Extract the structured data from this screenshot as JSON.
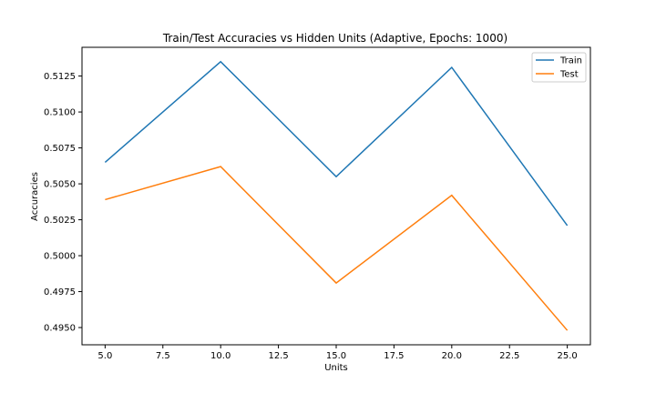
{
  "chart_data": {
    "type": "line",
    "title": "Train/Test Accuracies vs Hidden Units (Adaptive, Epochs: 1000)",
    "xlabel": "Units",
    "ylabel": "Accuracies",
    "x": [
      5,
      10,
      15,
      20,
      25
    ],
    "series": [
      {
        "name": "Train",
        "color": "#1f77b4",
        "values": [
          0.5065,
          0.5135,
          0.5055,
          0.5131,
          0.5021
        ]
      },
      {
        "name": "Test",
        "color": "#ff7f0e",
        "values": [
          0.5039,
          0.5062,
          0.4981,
          0.5042,
          0.4948
        ]
      }
    ],
    "xlim": [
      4.0,
      26.0
    ],
    "ylim": [
      0.4938,
      0.5145
    ],
    "xticks": [
      5.0,
      7.5,
      10.0,
      12.5,
      15.0,
      17.5,
      20.0,
      22.5,
      25.0
    ],
    "xtick_labels": [
      "5.0",
      "7.5",
      "10.0",
      "12.5",
      "15.0",
      "17.5",
      "20.0",
      "22.5",
      "25.0"
    ],
    "yticks": [
      0.495,
      0.4975,
      0.5,
      0.5025,
      0.505,
      0.5075,
      0.51,
      0.5125
    ],
    "ytick_labels": [
      "0.4950",
      "0.4975",
      "0.5000",
      "0.5025",
      "0.5050",
      "0.5075",
      "0.5100",
      "0.5125"
    ],
    "grid": false,
    "legend_position": "top-right"
  }
}
